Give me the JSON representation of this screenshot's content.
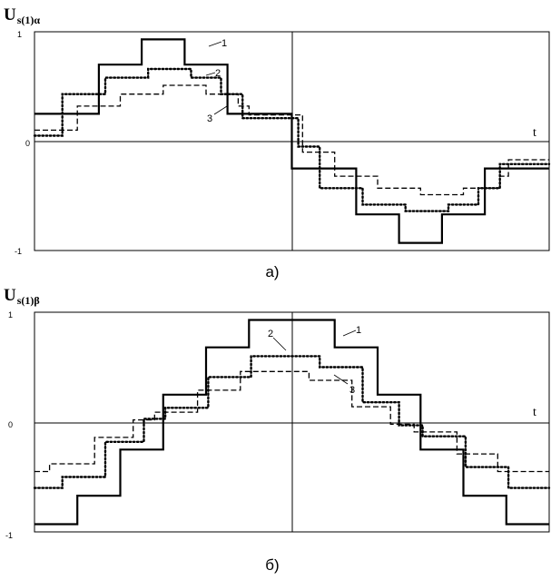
{
  "colors": {
    "line": "#000000",
    "frame": "#000000",
    "background": "#ffffff"
  },
  "chart_data": [
    {
      "type": "line",
      "title": "",
      "ylabel": "U",
      "ylabel_sub": "s(1)α",
      "xlabel": "t",
      "caption": "а)",
      "ylim": [
        -1,
        1
      ],
      "yticks": [
        "1",
        "0",
        "-1"
      ],
      "grid": "axes only",
      "step": true,
      "x_units": "fraction of period",
      "series": [
        {
          "name": "1",
          "style": "solid",
          "x": [
            0,
            0.0417,
            0.125,
            0.2083,
            0.2917,
            0.375,
            0.4583,
            0.5,
            0.5417,
            0.625,
            0.7083,
            0.7917,
            0.875,
            0.9583,
            1
          ],
          "values": [
            0.25,
            0.25,
            0.7,
            0.93,
            0.7,
            0.25,
            0.25,
            -0.25,
            -0.25,
            -0.67,
            -0.93,
            -0.67,
            -0.25,
            -0.25,
            -0.25
          ]
        },
        {
          "name": "2",
          "style": "dotted",
          "x": [
            0,
            0.0125,
            0.0542,
            0.1375,
            0.2208,
            0.3042,
            0.3625,
            0.4042,
            0.5,
            0.5125,
            0.5542,
            0.6375,
            0.7208,
            0.8042,
            0.8625,
            0.9042,
            1
          ],
          "values": [
            0.05,
            0.05,
            0.43,
            0.58,
            0.66,
            0.58,
            0.43,
            0.21,
            0.21,
            -0.05,
            -0.43,
            -0.58,
            -0.64,
            -0.58,
            -0.43,
            -0.21,
            -0.21
          ]
        },
        {
          "name": "3",
          "style": "dashed",
          "x": [
            0,
            0.0208,
            0.0833,
            0.1667,
            0.25,
            0.3333,
            0.3958,
            0.4167,
            0.5,
            0.5208,
            0.5833,
            0.6667,
            0.75,
            0.8333,
            0.9042,
            0.9208,
            1
          ],
          "values": [
            0.1,
            0.1,
            0.32,
            0.43,
            0.51,
            0.43,
            0.32,
            0.24,
            0.24,
            -0.1,
            -0.32,
            -0.43,
            -0.49,
            -0.43,
            -0.32,
            -0.17,
            -0.17
          ]
        }
      ],
      "annotations": [
        {
          "text": "1",
          "series": "1"
        },
        {
          "text": "2",
          "series": "2"
        },
        {
          "text": "3",
          "series": "3"
        }
      ]
    },
    {
      "type": "line",
      "title": "",
      "ylabel": "U",
      "ylabel_sub": "s(1)β",
      "xlabel": "t",
      "caption": "б)",
      "ylim": [
        -1,
        1
      ],
      "yticks": [
        "1",
        "0",
        "-1"
      ],
      "grid": "axes only",
      "step": true,
      "x_units": "fraction of period",
      "series": [
        {
          "name": "1",
          "style": "solid",
          "x": [
            0,
            0.0833,
            0.1667,
            0.25,
            0.3333,
            0.4167,
            0.5,
            0.5833,
            0.6667,
            0.75,
            0.8333,
            0.9167,
            1
          ],
          "values": [
            -0.93,
            -0.67,
            -0.25,
            0.25,
            0.68,
            0.93,
            0.93,
            0.68,
            0.25,
            -0.25,
            -0.67,
            -0.93,
            -0.93
          ]
        },
        {
          "name": "2",
          "style": "dotted",
          "x": [
            0,
            0.0542,
            0.1375,
            0.2125,
            0.2542,
            0.3375,
            0.4208,
            0.5,
            0.5542,
            0.6375,
            0.7083,
            0.7542,
            0.8375,
            0.9208,
            1
          ],
          "values": [
            -0.6,
            -0.5,
            -0.18,
            0.03,
            0.13,
            0.41,
            0.6,
            0.6,
            0.5,
            0.18,
            -0.03,
            -0.13,
            -0.41,
            -0.6,
            -0.6
          ]
        },
        {
          "name": "3",
          "style": "dashed",
          "x": [
            0,
            0.0292,
            0.1167,
            0.1917,
            0.2333,
            0.3167,
            0.4,
            0.4833,
            0.5333,
            0.6167,
            0.6917,
            0.7375,
            0.8208,
            0.9,
            1
          ],
          "values": [
            -0.45,
            -0.38,
            -0.14,
            0.02,
            0.09,
            0.29,
            0.46,
            0.46,
            0.38,
            0.14,
            -0.02,
            -0.09,
            -0.29,
            -0.45,
            -0.45
          ]
        }
      ],
      "annotations": [
        {
          "text": "1",
          "series": "1"
        },
        {
          "text": "2",
          "series": "2"
        },
        {
          "text": "3",
          "series": "3"
        }
      ]
    }
  ]
}
